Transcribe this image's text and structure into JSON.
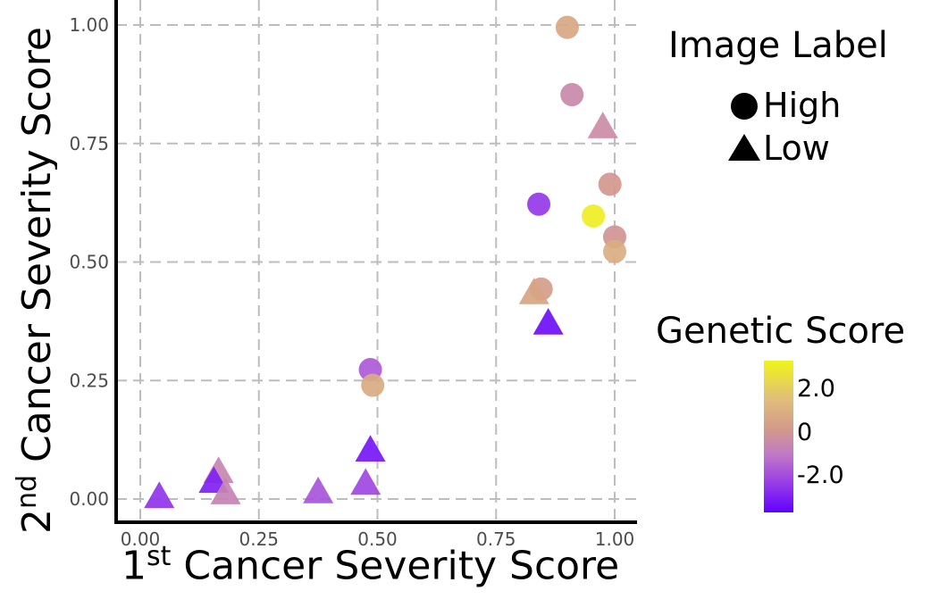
{
  "chart_data": {
    "type": "scatter",
    "xlabel": "Cancer Severity Score",
    "xlabel_sup": "st",
    "xlabel_prefix": "1",
    "ylabel": "Cancer Severity Score",
    "ylabel_sup": "nd",
    "ylabel_prefix": "2",
    "xlim": [
      -0.04,
      1.05
    ],
    "ylim": [
      -0.05,
      1.04
    ],
    "xticks": [
      0.0,
      0.25,
      0.5,
      0.75,
      1.0
    ],
    "xtick_labels": [
      "0.00",
      "0.25",
      "0.50",
      "0.75",
      "1.00"
    ],
    "yticks": [
      0.0,
      0.25,
      0.5,
      0.75,
      1.0
    ],
    "ytick_labels": [
      "0.00",
      "0.25",
      "0.50",
      "0.75",
      "1.00"
    ],
    "grid": true,
    "grid_style": "dashed",
    "shape_legend": {
      "title": "Image Label",
      "entries": [
        {
          "label": "High",
          "shape": "circle"
        },
        {
          "label": "Low",
          "shape": "triangle"
        }
      ]
    },
    "color_legend": {
      "title": "Genetic Score",
      "range": [
        -3.5,
        3.2
      ],
      "ticks": [
        2.0,
        0,
        -2.0
      ],
      "tick_labels": [
        "2.0",
        "0",
        "-2.0"
      ],
      "low_color": "#6000ff",
      "mid_color": "#d39a8a",
      "high_color": "#f0f51a"
    },
    "points": [
      {
        "x": 0.9,
        "y": 0.995,
        "label": "High",
        "genetic": 0.7
      },
      {
        "x": 0.91,
        "y": 0.853,
        "label": "High",
        "genetic": -0.4
      },
      {
        "x": 0.975,
        "y": 0.785,
        "label": "Low",
        "genetic": -0.3
      },
      {
        "x": 0.99,
        "y": 0.664,
        "label": "High",
        "genetic": 0.1
      },
      {
        "x": 0.84,
        "y": 0.622,
        "label": "High",
        "genetic": -2.3
      },
      {
        "x": 0.955,
        "y": 0.597,
        "label": "High",
        "genetic": 3.0
      },
      {
        "x": 1.0,
        "y": 0.553,
        "label": "High",
        "genetic": 0.0
      },
      {
        "x": 1.0,
        "y": 0.522,
        "label": "High",
        "genetic": 0.9
      },
      {
        "x": 0.845,
        "y": 0.443,
        "label": "High",
        "genetic": 0.3
      },
      {
        "x": 0.83,
        "y": 0.435,
        "label": "Low",
        "genetic": 0.6
      },
      {
        "x": 0.86,
        "y": 0.371,
        "label": "Low",
        "genetic": -3.2
      },
      {
        "x": 0.485,
        "y": 0.273,
        "label": "High",
        "genetic": -1.6
      },
      {
        "x": 0.49,
        "y": 0.24,
        "label": "High",
        "genetic": 0.8
      },
      {
        "x": 0.485,
        "y": 0.103,
        "label": "Low",
        "genetic": -3.0
      },
      {
        "x": 0.475,
        "y": 0.033,
        "label": "Low",
        "genetic": -2.0
      },
      {
        "x": 0.375,
        "y": 0.015,
        "label": "Low",
        "genetic": -1.7
      },
      {
        "x": 0.165,
        "y": 0.058,
        "label": "Low",
        "genetic": -0.5
      },
      {
        "x": 0.155,
        "y": 0.037,
        "label": "Low",
        "genetic": -2.8
      },
      {
        "x": 0.18,
        "y": 0.013,
        "label": "Low",
        "genetic": -0.6
      },
      {
        "x": 0.04,
        "y": 0.005,
        "label": "Low",
        "genetic": -2.4
      }
    ]
  }
}
